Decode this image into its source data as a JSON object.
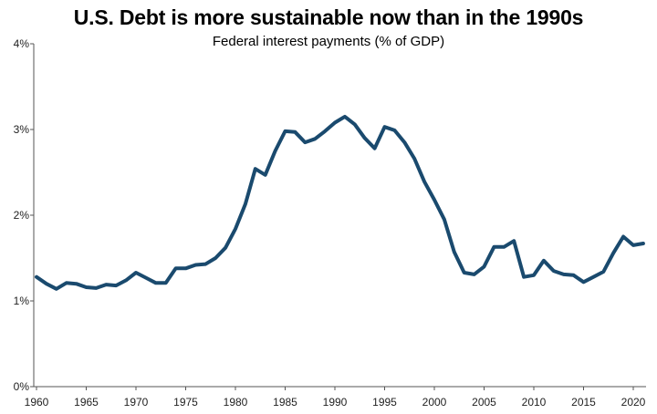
{
  "chart_data": {
    "type": "line",
    "title": "U.S. Debt is more sustainable now than in the 1990s",
    "subtitle": "Federal interest payments (% of GDP)",
    "xlabel": "",
    "ylabel": "",
    "xlim": [
      1960,
      2021
    ],
    "ylim": [
      0,
      4
    ],
    "x_ticks": [
      1960,
      1965,
      1970,
      1975,
      1980,
      1985,
      1990,
      1995,
      2000,
      2005,
      2010,
      2015,
      2020
    ],
    "y_ticks": [
      0,
      1,
      2,
      3,
      4
    ],
    "y_tick_labels": [
      "0%",
      "1%",
      "2%",
      "3%",
      "4%"
    ],
    "grid": false,
    "line_color": "#1a4a6e",
    "series": [
      {
        "x": [
          1960,
          1961,
          1962,
          1963,
          1964,
          1965,
          1966,
          1967,
          1968,
          1969,
          1970,
          1971,
          1972,
          1973,
          1974,
          1975,
          1976,
          1977,
          1978,
          1979,
          1980,
          1981,
          1982,
          1983,
          1984,
          1985,
          1986,
          1987,
          1988,
          1989,
          1990,
          1991,
          1992,
          1993,
          1994,
          1995,
          1996,
          1997,
          1998,
          1999,
          2000,
          2001,
          2002,
          2003,
          2004,
          2005,
          2006,
          2007,
          2008,
          2009,
          2010,
          2011,
          2012,
          2013,
          2014,
          2015,
          2016,
          2017,
          2018,
          2019,
          2020,
          2021
        ],
        "values": [
          1.28,
          1.2,
          1.14,
          1.21,
          1.2,
          1.16,
          1.15,
          1.19,
          1.18,
          1.24,
          1.33,
          1.27,
          1.21,
          1.21,
          1.38,
          1.38,
          1.42,
          1.43,
          1.5,
          1.62,
          1.84,
          2.13,
          2.54,
          2.47,
          2.75,
          2.98,
          2.97,
          2.85,
          2.89,
          2.98,
          3.08,
          3.15,
          3.06,
          2.9,
          2.78,
          3.03,
          2.99,
          2.85,
          2.66,
          2.39,
          2.18,
          1.95,
          1.57,
          1.33,
          1.31,
          1.4,
          1.63,
          1.63,
          1.7,
          1.28,
          1.3,
          1.47,
          1.35,
          1.31,
          1.3,
          1.22,
          1.28,
          1.34,
          1.56,
          1.75,
          1.65,
          1.67
        ]
      }
    ]
  }
}
